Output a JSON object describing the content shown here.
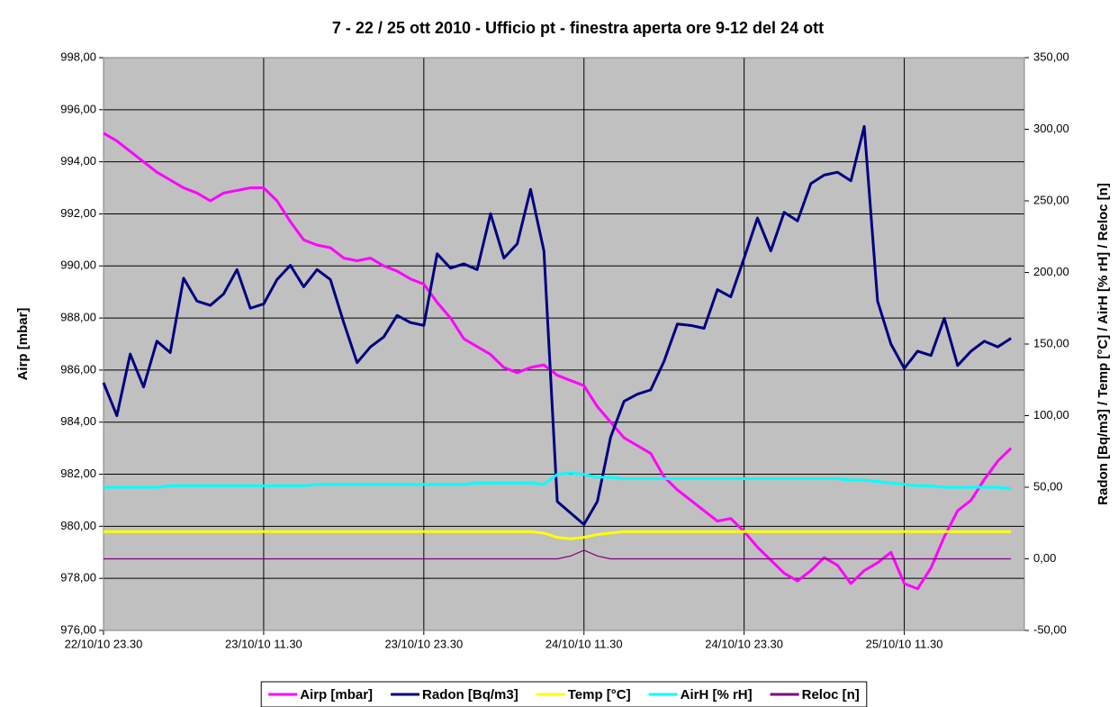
{
  "chart_data": {
    "type": "line",
    "title": "7 - 22 / 25 ott 2010 - Ufficio pt - finestra aperta ore 9-12 del 24 ott",
    "y_label": "Airp [mbar]",
    "y2_label": "Radon [Bq/m3] / Temp [°C] / AirH [% rH] / Reloc [n]",
    "categories": [
      "22/10/10 23.30",
      null,
      null,
      null,
      null,
      null,
      null,
      null,
      null,
      null,
      null,
      null,
      "23/10/10 11.30",
      null,
      null,
      null,
      null,
      null,
      null,
      null,
      null,
      null,
      null,
      null,
      "23/10/10 23.30",
      null,
      null,
      null,
      null,
      null,
      null,
      null,
      null,
      null,
      null,
      null,
      "24/10/10 11.30",
      null,
      null,
      null,
      null,
      null,
      null,
      null,
      null,
      null,
      null,
      null,
      "24/10/10 23.30",
      null,
      null,
      null,
      null,
      null,
      null,
      null,
      null,
      null,
      null,
      null,
      "25/10/10 11.30",
      null,
      null,
      null,
      null,
      null,
      null,
      null,
      null,
      null
    ],
    "ylim": [
      976,
      998
    ],
    "yticks": [
      {
        "value": 976,
        "label": "976,00"
      },
      {
        "value": 978,
        "label": "978,00"
      },
      {
        "value": 980,
        "label": "980,00"
      },
      {
        "value": 982,
        "label": "982,00"
      },
      {
        "value": 984,
        "label": "984,00"
      },
      {
        "value": 986,
        "label": "986,00"
      },
      {
        "value": 988,
        "label": "988,00"
      },
      {
        "value": 990,
        "label": "990,00"
      },
      {
        "value": 992,
        "label": "992,00"
      },
      {
        "value": 994,
        "label": "994,00"
      },
      {
        "value": 996,
        "label": "996,00"
      },
      {
        "value": 998,
        "label": "998,00"
      }
    ],
    "y2lim": [
      -50,
      350
    ],
    "y2ticks": [
      {
        "value": -50,
        "label": "-50,00"
      },
      {
        "value": 0,
        "label": "0,00"
      },
      {
        "value": 50,
        "label": "50,00"
      },
      {
        "value": 100,
        "label": "100,00"
      },
      {
        "value": 150,
        "label": "150,00"
      },
      {
        "value": 200,
        "label": "200,00"
      },
      {
        "value": 250,
        "label": "250,00"
      },
      {
        "value": 300,
        "label": "300,00"
      },
      {
        "value": 350,
        "label": "350,00"
      }
    ],
    "grid": true,
    "legend": "bottom",
    "series": [
      {
        "name": "Airp [mbar]",
        "color": "#ff00ff",
        "axis": "y",
        "values": [
          995.1,
          994.8,
          994.4,
          994.0,
          993.6,
          993.3,
          993.0,
          992.8,
          992.5,
          992.8,
          992.9,
          993.0,
          993.0,
          992.5,
          991.7,
          991.0,
          990.8,
          990.7,
          990.3,
          990.2,
          990.3,
          990.0,
          989.8,
          989.5,
          989.3,
          988.6,
          988.0,
          987.2,
          986.9,
          986.6,
          986.1,
          985.9,
          986.1,
          986.2,
          985.8,
          985.6,
          985.4,
          984.6,
          984.0,
          983.4,
          983.1,
          982.8,
          981.9,
          981.4,
          981.0,
          980.6,
          980.2,
          980.3,
          979.8,
          979.2,
          978.7,
          978.2,
          977.9,
          978.3,
          978.8,
          978.5,
          977.8,
          978.3,
          978.6,
          979.0,
          977.8,
          977.6,
          978.4,
          979.6,
          980.6,
          981.0,
          981.8,
          982.5,
          983.0,
          null
        ]
      },
      {
        "name": "Radon [Bq/m3]",
        "color": "#000080",
        "axis": "y2",
        "values": [
          123,
          100,
          143,
          120,
          152,
          144,
          196,
          180,
          177,
          185,
          202,
          175,
          178,
          195,
          205,
          190,
          202,
          195,
          165,
          137,
          148,
          155,
          170,
          165,
          163,
          213,
          203,
          206,
          202,
          241,
          210,
          220,
          258,
          215,
          40,
          32,
          24,
          40,
          85,
          110,
          115,
          118,
          138,
          164,
          163,
          161,
          188,
          183,
          210,
          238,
          215,
          242,
          236,
          262,
          268,
          270,
          264,
          302,
          180,
          150,
          133,
          145,
          142,
          168,
          135,
          145,
          152,
          148,
          154,
          null
        ]
      },
      {
        "name": "Temp [°C]",
        "color": "#ffff00",
        "axis": "y2",
        "values": [
          19,
          19,
          19,
          19,
          19,
          19,
          19,
          19,
          19,
          19,
          19,
          19,
          19,
          19,
          19,
          19,
          19,
          19,
          19,
          19,
          19,
          19,
          19,
          19,
          19,
          19,
          19,
          19,
          19,
          19,
          19,
          19,
          19,
          18,
          15,
          14,
          15,
          17,
          18,
          19,
          19,
          19,
          19,
          19,
          19,
          19,
          19,
          19,
          19,
          19,
          19,
          19,
          19,
          19,
          19,
          19,
          19,
          19,
          19,
          19,
          19,
          19,
          19,
          19,
          19,
          19,
          19,
          19,
          19,
          null
        ]
      },
      {
        "name": "AirH [% rH]",
        "color": "#00ffff",
        "axis": "y2",
        "values": [
          50,
          50,
          50,
          50,
          50,
          51,
          51,
          51,
          51,
          51,
          51,
          51,
          51,
          51,
          51,
          51,
          52,
          52,
          52,
          52,
          52,
          52,
          52,
          52,
          52,
          52,
          52,
          52,
          53,
          53,
          53,
          53,
          53,
          52,
          59,
          60,
          59,
          57,
          57,
          56,
          56,
          56,
          56,
          56,
          56,
          56,
          56,
          56,
          56,
          56,
          56,
          56,
          56,
          56,
          56,
          56,
          55,
          55,
          54,
          53,
          52,
          51,
          51,
          50,
          50,
          50,
          50,
          50,
          49,
          null
        ]
      },
      {
        "name": "Reloc [n]",
        "color": "#800080",
        "axis": "y2",
        "values": [
          0,
          0,
          0,
          0,
          0,
          0,
          0,
          0,
          0,
          0,
          0,
          0,
          0,
          0,
          0,
          0,
          0,
          0,
          0,
          0,
          0,
          0,
          0,
          0,
          0,
          0,
          0,
          0,
          0,
          0,
          0,
          0,
          0,
          0,
          0,
          2,
          6,
          2,
          0,
          0,
          0,
          0,
          0,
          0,
          0,
          0,
          0,
          0,
          0,
          0,
          0,
          0,
          0,
          0,
          0,
          0,
          0,
          0,
          0,
          0,
          0,
          0,
          0,
          0,
          0,
          0,
          0,
          0,
          0,
          null
        ]
      }
    ]
  }
}
